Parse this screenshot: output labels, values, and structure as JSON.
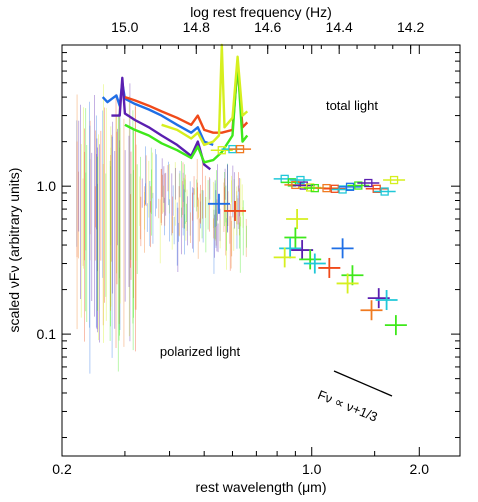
{
  "chart_data": {
    "type": "line",
    "title": "",
    "xlabel": "rest wavelength (μm)",
    "x2label": "log rest frequency (Hz)",
    "ylabel": "scaled νFν (arbitrary units)",
    "xscale": "log",
    "yscale": "log",
    "xlim": [
      0.2,
      2.6
    ],
    "ylim": [
      0.015,
      9.0
    ],
    "x_ticks": [
      {
        "value": 0.2,
        "label": "0.2"
      },
      {
        "value": 1.0,
        "label": "1.0"
      },
      {
        "value": 2.0,
        "label": "2.0"
      }
    ],
    "x2_ticks": [
      {
        "value": 15.0,
        "label": "15.0"
      },
      {
        "value": 14.8,
        "label": "14.8"
      },
      {
        "value": 14.6,
        "label": "14.6"
      },
      {
        "value": 14.4,
        "label": "14.4"
      },
      {
        "value": 14.2,
        "label": "14.2"
      }
    ],
    "y_ticks": [
      {
        "value": 1.0,
        "label": "1.0"
      },
      {
        "value": 0.1,
        "label": "0.1"
      }
    ],
    "annotations": {
      "total": "total light",
      "polarized": "polarized light",
      "powerlaw": "Fν ∝ ν+1/3"
    },
    "colors": {
      "blue": "#1f6fe6",
      "red": "#f04a1a",
      "purple": "#5a1fb0",
      "green": "#3ee81a",
      "yellow": "#d6ef1f",
      "cyan": "#20c8d8",
      "orange": "#f07a20"
    },
    "total_spectra": [
      {
        "color": "blue",
        "points": [
          [
            0.26,
            4.0
          ],
          [
            0.268,
            3.7
          ],
          [
            0.276,
            3.9
          ],
          [
            0.284,
            4.1
          ],
          [
            0.29,
            3.5
          ],
          [
            0.295,
            5.0
          ],
          [
            0.3,
            3.9
          ],
          [
            0.32,
            3.6
          ],
          [
            0.35,
            3.3
          ],
          [
            0.38,
            3.0
          ],
          [
            0.42,
            2.6
          ],
          [
            0.46,
            2.3
          ],
          [
            0.48,
            2.5
          ],
          [
            0.5,
            2.0
          ],
          [
            0.53,
            1.9
          ]
        ]
      },
      {
        "color": "red",
        "points": [
          [
            0.3,
            4.0
          ],
          [
            0.32,
            3.8
          ],
          [
            0.35,
            3.5
          ],
          [
            0.38,
            3.2
          ],
          [
            0.42,
            2.9
          ],
          [
            0.46,
            2.6
          ],
          [
            0.48,
            3.0
          ],
          [
            0.5,
            2.4
          ],
          [
            0.53,
            2.3
          ],
          [
            0.56,
            2.3
          ],
          [
            0.6,
            2.4
          ],
          [
            0.62,
            6.5
          ],
          [
            0.64,
            2.5
          ],
          [
            0.66,
            2.7
          ]
        ]
      },
      {
        "color": "purple",
        "points": [
          [
            0.275,
            3.0
          ],
          [
            0.29,
            3.0
          ],
          [
            0.295,
            5.4
          ],
          [
            0.3,
            3.1
          ],
          [
            0.32,
            2.8
          ],
          [
            0.35,
            2.5
          ],
          [
            0.38,
            2.2
          ],
          [
            0.42,
            1.9
          ],
          [
            0.46,
            1.6
          ],
          [
            0.48,
            2.0
          ],
          [
            0.5,
            1.4
          ],
          [
            0.52,
            1.3
          ]
        ]
      },
      {
        "color": "green",
        "points": [
          [
            0.3,
            2.6
          ],
          [
            0.32,
            2.4
          ],
          [
            0.35,
            2.2
          ],
          [
            0.38,
            1.95
          ],
          [
            0.42,
            1.75
          ],
          [
            0.46,
            1.55
          ],
          [
            0.48,
            1.85
          ],
          [
            0.5,
            1.45
          ],
          [
            0.53,
            1.5
          ],
          [
            0.56,
            1.7
          ],
          [
            0.6,
            2.2
          ],
          [
            0.62,
            7.0
          ],
          [
            0.64,
            2.0
          ],
          [
            0.66,
            2.2
          ]
        ]
      },
      {
        "color": "yellow",
        "points": [
          [
            0.38,
            2.6
          ],
          [
            0.42,
            2.4
          ],
          [
            0.46,
            2.1
          ],
          [
            0.48,
            2.3
          ],
          [
            0.5,
            1.9
          ],
          [
            0.53,
            2.0
          ],
          [
            0.55,
            2.2
          ],
          [
            0.56,
            9.0
          ],
          [
            0.57,
            2.5
          ],
          [
            0.6,
            2.9
          ],
          [
            0.62,
            7.5
          ],
          [
            0.64,
            3.0
          ],
          [
            0.66,
            3.2
          ]
        ]
      }
    ],
    "total_photometry": [
      {
        "color": "yellow",
        "x": 0.56,
        "y": 1.75
      },
      {
        "color": "cyan",
        "x": 0.6,
        "y": 1.78
      },
      {
        "color": "orange",
        "x": 0.63,
        "y": 1.78
      },
      {
        "color": "cyan",
        "x": 0.84,
        "y": 1.12
      },
      {
        "color": "green",
        "x": 0.88,
        "y": 1.06
      },
      {
        "color": "orange",
        "x": 0.9,
        "y": 1.02
      },
      {
        "color": "cyan",
        "x": 0.93,
        "y": 1.1
      },
      {
        "color": "purple",
        "x": 0.95,
        "y": 1.01
      },
      {
        "color": "yellow",
        "x": 0.99,
        "y": 0.98
      },
      {
        "color": "green",
        "x": 1.02,
        "y": 0.97
      },
      {
        "color": "orange",
        "x": 1.1,
        "y": 0.97
      },
      {
        "color": "red",
        "x": 1.16,
        "y": 0.96
      },
      {
        "color": "cyan",
        "x": 1.22,
        "y": 0.95
      },
      {
        "color": "blue",
        "x": 1.28,
        "y": 0.99
      },
      {
        "color": "green",
        "x": 1.35,
        "y": 1.01
      },
      {
        "color": "purple",
        "x": 1.44,
        "y": 1.05
      },
      {
        "color": "red",
        "x": 1.52,
        "y": 0.96
      },
      {
        "color": "cyan",
        "x": 1.6,
        "y": 0.92
      },
      {
        "color": "yellow",
        "x": 1.7,
        "y": 1.1
      }
    ],
    "polarized_photometry": [
      {
        "color": "blue",
        "x": 0.55,
        "y": 0.76
      },
      {
        "color": "red",
        "x": 0.61,
        "y": 0.68
      },
      {
        "color": "yellow",
        "x": 0.91,
        "y": 0.6
      },
      {
        "color": "green",
        "x": 0.9,
        "y": 0.45
      },
      {
        "color": "cyan",
        "x": 0.87,
        "y": 0.38
      },
      {
        "color": "yellow",
        "x": 0.84,
        "y": 0.33
      },
      {
        "color": "purple",
        "x": 0.94,
        "y": 0.37
      },
      {
        "color": "green",
        "x": 0.99,
        "y": 0.32
      },
      {
        "color": "cyan",
        "x": 1.02,
        "y": 0.3
      },
      {
        "color": "red",
        "x": 1.12,
        "y": 0.28
      },
      {
        "color": "blue",
        "x": 1.22,
        "y": 0.38
      },
      {
        "color": "green",
        "x": 1.3,
        "y": 0.25
      },
      {
        "color": "yellow",
        "x": 1.26,
        "y": 0.22
      },
      {
        "color": "orange",
        "x": 1.47,
        "y": 0.145
      },
      {
        "color": "purple",
        "x": 1.54,
        "y": 0.175
      },
      {
        "color": "cyan",
        "x": 1.62,
        "y": 0.17
      },
      {
        "color": "green",
        "x": 1.72,
        "y": 0.115
      }
    ]
  }
}
